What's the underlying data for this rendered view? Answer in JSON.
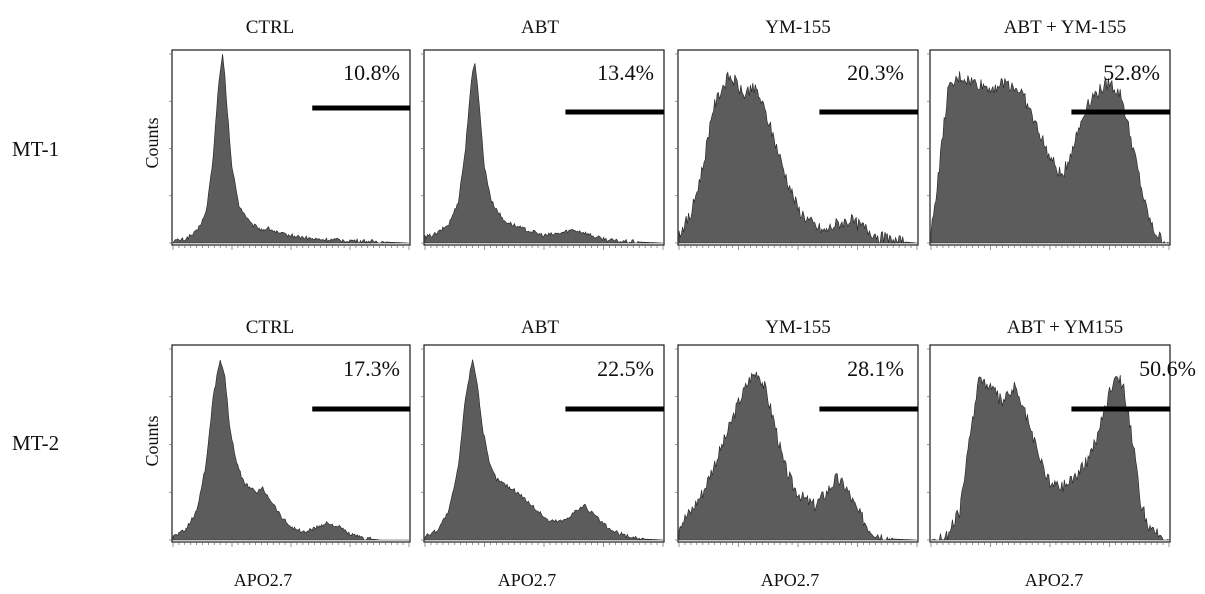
{
  "figure": {
    "rows": [
      {
        "label": "MT-1",
        "ylabel": "Counts",
        "panels": [
          {
            "title": "CTRL",
            "percent": "10.8%"
          },
          {
            "title": "ABT",
            "percent": "13.4%"
          },
          {
            "title": "YM-155",
            "percent": "20.3%"
          },
          {
            "title": "ABT + YM-155",
            "percent": "52.8%"
          }
        ]
      },
      {
        "label": "MT-2",
        "ylabel": "Counts",
        "xlabel": "APO2.7",
        "panels": [
          {
            "title": "CTRL",
            "percent": "17.3%"
          },
          {
            "title": "ABT",
            "percent": "22.5%"
          },
          {
            "title": "YM-155",
            "percent": "28.1%"
          },
          {
            "title": "ABT + YM155",
            "percent": "50.6%"
          }
        ]
      }
    ]
  },
  "chart_data": {
    "type": "area",
    "x_scale": "log",
    "xlim": [
      0,
      100
    ],
    "ylim": [
      0,
      100
    ],
    "fill_color": "#5c5c5c",
    "gate_color": "#000000",
    "gate_range": [
      59,
      100
    ],
    "panels": [
      {
        "row": "MT-1",
        "title": "CTRL",
        "gate_label": "10.8%",
        "x": [
          0,
          5,
          10,
          14,
          17,
          19,
          20,
          21,
          22,
          23,
          25,
          28,
          33,
          38,
          40,
          45,
          50,
          55,
          60,
          70,
          80,
          90,
          100
        ],
        "y": [
          1,
          2,
          6,
          16,
          45,
          80,
          90,
          100,
          88,
          70,
          40,
          20,
          10,
          7,
          8,
          5,
          4,
          3,
          2,
          1.5,
          1,
          0.5,
          0
        ]
      },
      {
        "row": "MT-1",
        "title": "ABT",
        "gate_label": "13.4%",
        "x": [
          0,
          5,
          10,
          14,
          17,
          19,
          20,
          21,
          22,
          23,
          25,
          28,
          33,
          40,
          50,
          56,
          62,
          66,
          72,
          80,
          90,
          100
        ],
        "y": [
          3,
          5,
          10,
          22,
          50,
          80,
          90,
          95,
          85,
          70,
          40,
          22,
          12,
          8,
          4,
          5,
          7,
          6,
          3,
          1,
          0.5,
          0
        ]
      },
      {
        "row": "MT-1",
        "title": "YM-155",
        "gate_label": "20.3%",
        "x": [
          0,
          5,
          10,
          14,
          18,
          21,
          24,
          27,
          30,
          33,
          36,
          40,
          45,
          50,
          56,
          61,
          66,
          72,
          78,
          85,
          90,
          100
        ],
        "y": [
          5,
          15,
          40,
          70,
          82,
          88,
          85,
          78,
          82,
          80,
          70,
          55,
          35,
          18,
          10,
          6,
          10,
          12,
          8,
          3,
          1,
          0
        ],
        "jagged": true
      },
      {
        "row": "MT-1",
        "title": "ABT + YM-155",
        "gate_label": "52.8%",
        "x": [
          0,
          3,
          7,
          12,
          18,
          25,
          32,
          38,
          45,
          50,
          55,
          58,
          62,
          66,
          70,
          75,
          80,
          85,
          90,
          93,
          96,
          100
        ],
        "y": [
          5,
          35,
          80,
          88,
          85,
          82,
          85,
          80,
          60,
          45,
          35,
          45,
          60,
          75,
          80,
          85,
          78,
          50,
          20,
          8,
          3,
          0
        ],
        "jagged": true
      },
      {
        "row": "MT-2",
        "title": "CTRL",
        "gate_label": "17.3%",
        "x": [
          0,
          5,
          10,
          14,
          17,
          20,
          22,
          24,
          27,
          30,
          35,
          38,
          42,
          46,
          50,
          55,
          60,
          65,
          70,
          75,
          80,
          88,
          100
        ],
        "y": [
          2,
          5,
          15,
          40,
          75,
          95,
          85,
          60,
          40,
          30,
          25,
          27,
          20,
          12,
          7,
          4,
          6,
          9,
          7,
          3,
          1,
          0,
          0
        ]
      },
      {
        "row": "MT-2",
        "title": "ABT",
        "gate_label": "22.5%",
        "x": [
          0,
          5,
          10,
          14,
          17,
          20,
          22,
          24,
          27,
          30,
          35,
          40,
          45,
          52,
          58,
          63,
          67,
          72,
          78,
          85,
          92,
          100
        ],
        "y": [
          2,
          5,
          15,
          38,
          75,
          95,
          82,
          60,
          40,
          32,
          28,
          24,
          18,
          10,
          10,
          15,
          18,
          12,
          5,
          2,
          0.5,
          0
        ]
      },
      {
        "row": "MT-2",
        "title": "YM-155",
        "gate_label": "28.1%",
        "x": [
          0,
          5,
          10,
          15,
          20,
          25,
          30,
          33,
          36,
          40,
          44,
          48,
          52,
          57,
          62,
          66,
          70,
          75,
          80,
          85,
          90,
          100
        ],
        "y": [
          8,
          15,
          25,
          40,
          55,
          72,
          85,
          88,
          80,
          62,
          40,
          28,
          22,
          18,
          25,
          32,
          28,
          15,
          6,
          2,
          0.5,
          0
        ],
        "jagged": true
      },
      {
        "row": "MT-2",
        "title": "ABT + YM155",
        "gate_label": "50.6%",
        "x": [
          0,
          7,
          12,
          16,
          20,
          25,
          30,
          35,
          40,
          45,
          50,
          55,
          60,
          65,
          70,
          75,
          78,
          81,
          85,
          88,
          92,
          100
        ],
        "y": [
          0,
          2,
          15,
          50,
          85,
          80,
          72,
          80,
          65,
          45,
          30,
          28,
          33,
          40,
          55,
          78,
          88,
          80,
          50,
          20,
          5,
          0
        ],
        "jagged": true
      }
    ]
  }
}
